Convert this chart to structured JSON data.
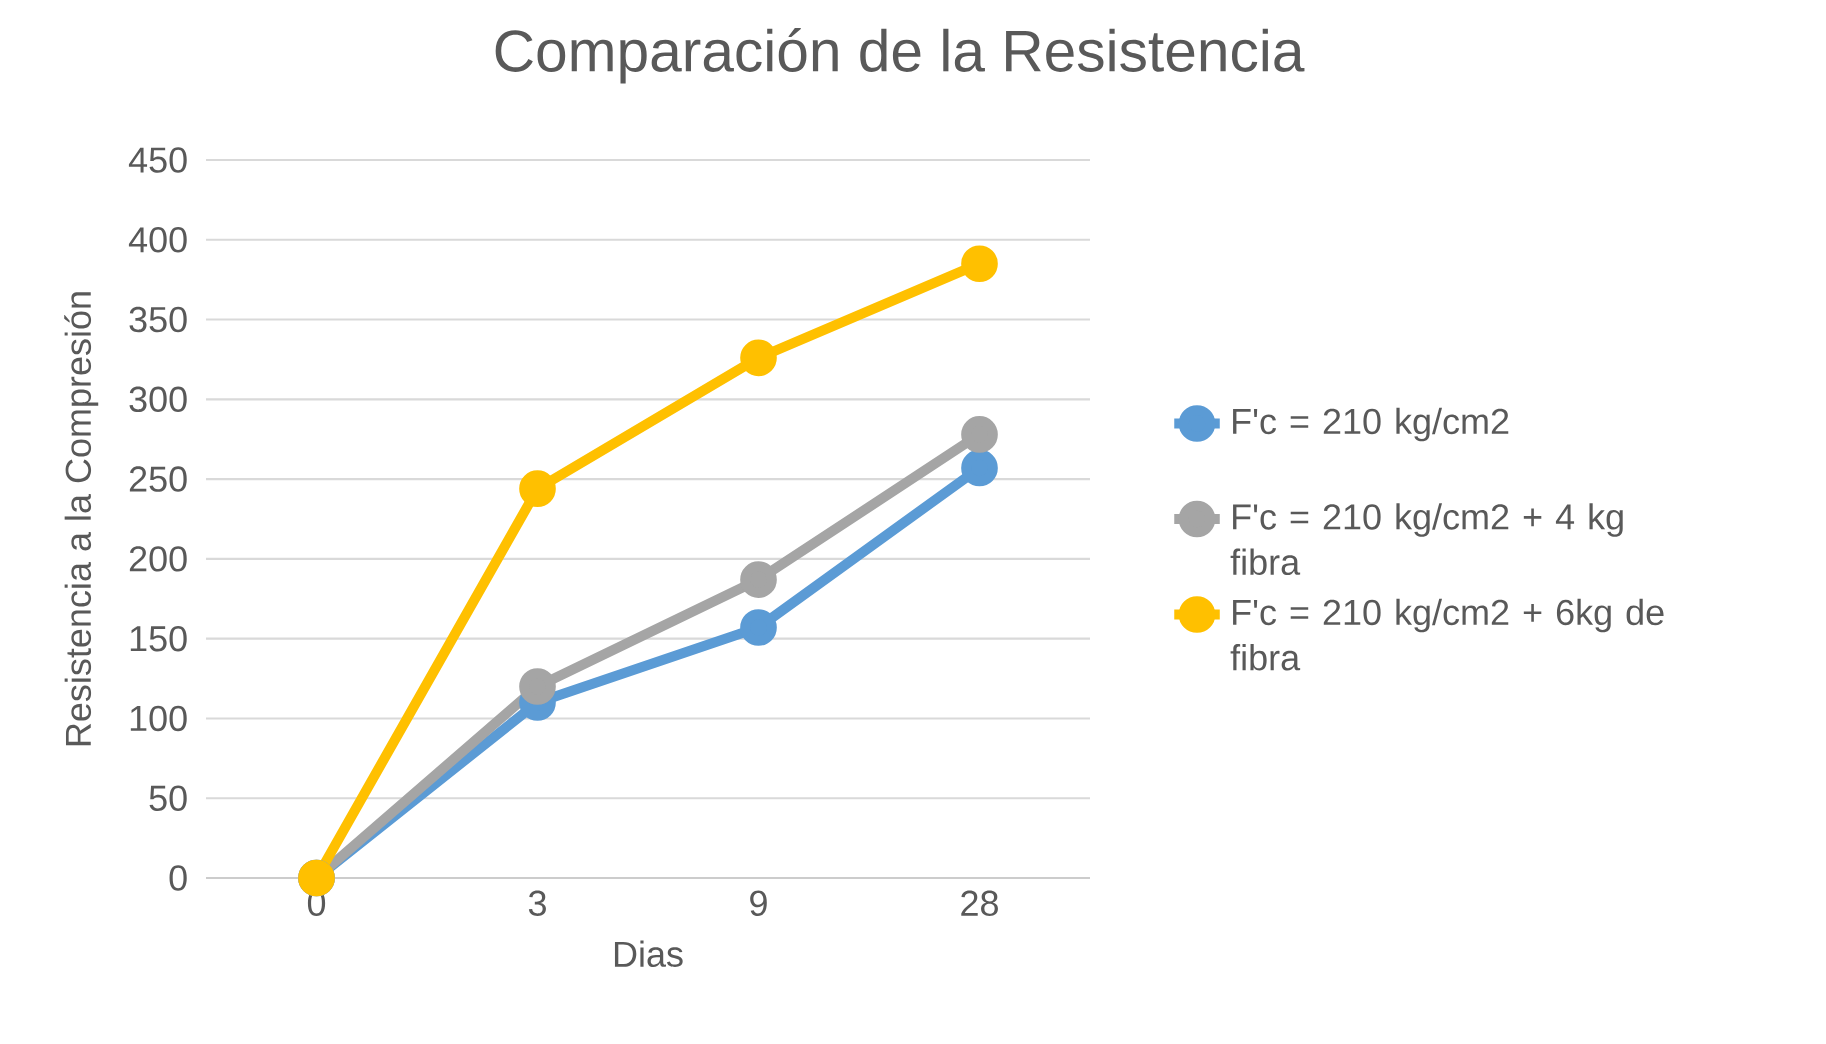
{
  "chart_data": {
    "type": "line",
    "title": "Comparación de la Resistencia",
    "xlabel": "Dias",
    "ylabel": "Resistencia a la Compresión",
    "categories": [
      "0",
      "3",
      "9",
      "28"
    ],
    "series": [
      {
        "name": "F'c = 210 kg/cm2",
        "color": "#5b9bd5",
        "values": [
          0,
          110,
          157,
          257
        ]
      },
      {
        "name": "F'c = 210 kg/cm2 + 4 kg fibra",
        "color": "#a5a5a5",
        "values": [
          0,
          120,
          187,
          278
        ]
      },
      {
        "name": "F'c = 210 kg/cm2 + 6kg de fibra",
        "color": "#ffc000",
        "values": [
          0,
          244,
          326,
          385
        ]
      }
    ],
    "ylim": [
      0,
      450
    ],
    "yticks": [
      0,
      50,
      100,
      150,
      200,
      250,
      300,
      350,
      400,
      450
    ],
    "grid": "y",
    "legend": "right",
    "marker": "circle",
    "line_style": "solid"
  }
}
